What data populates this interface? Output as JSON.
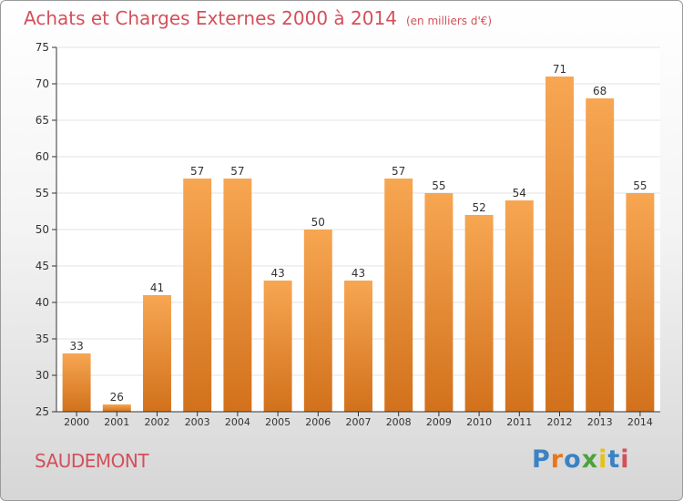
{
  "header": {
    "title": "Achats et Charges Externes 2000 à 2014",
    "subtitle": "(en milliers d'€)"
  },
  "footer": {
    "commune": "SAUDEMONT",
    "logo": "Proxiti",
    "logo_colors": [
      "#3b82c4",
      "#e8761c",
      "#3b82c4",
      "#4aa33b",
      "#e4c21c",
      "#3b82c4",
      "#d3505b"
    ]
  },
  "colors": {
    "title": "#d3505b",
    "bar_top": "#f7a652",
    "bar_bottom": "#d2711c",
    "axis": "#333333",
    "grid": "#e3e3e3"
  },
  "chart_data": {
    "type": "bar",
    "categories": [
      "2000",
      "2001",
      "2002",
      "2003",
      "2004",
      "2005",
      "2006",
      "2007",
      "2008",
      "2009",
      "2010",
      "2011",
      "2012",
      "2013",
      "2014"
    ],
    "values": [
      33,
      26,
      41,
      57,
      57,
      43,
      50,
      43,
      57,
      55,
      52,
      54,
      71,
      68,
      55
    ],
    "title": "Achats et Charges Externes 2000 à 2014",
    "subtitle": "(en milliers d'€)",
    "ylim": [
      25,
      75
    ],
    "yticks": [
      25,
      30,
      35,
      40,
      45,
      50,
      55,
      60,
      65,
      70,
      75
    ],
    "grid": true,
    "data_labels": true
  }
}
